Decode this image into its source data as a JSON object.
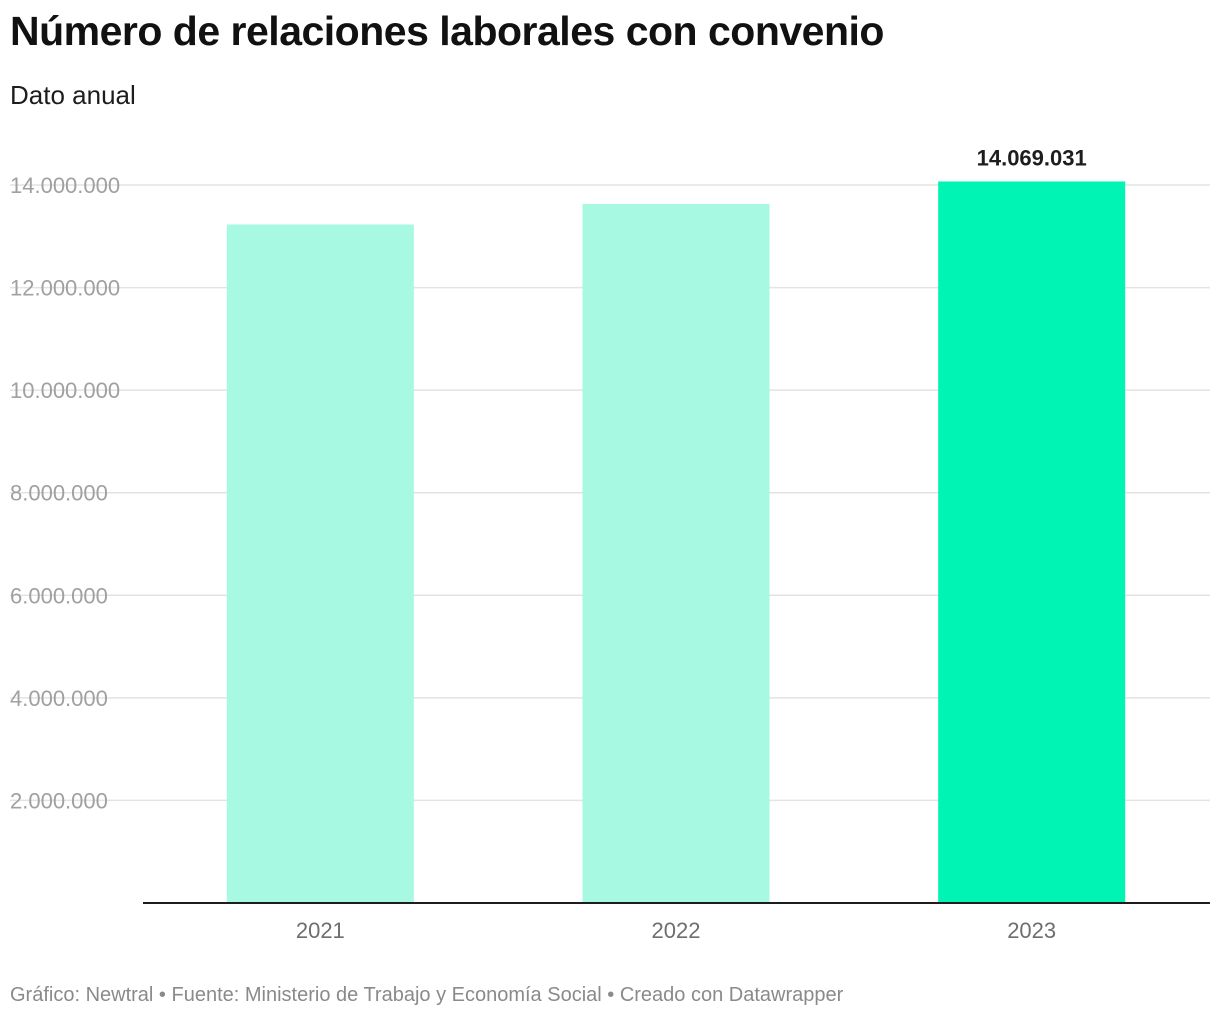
{
  "header": {
    "title": "Número de relaciones laborales con convenio",
    "subtitle": "Dato anual"
  },
  "footer": {
    "text": "Gráfico: Newtral • Fuente: Ministerio de Trabajo y Economía Social • Creado con Datawrapper"
  },
  "colors": {
    "bar_default": "#a7f9e2",
    "bar_highlight": "#00f5b4",
    "gridline": "#e3e3e3",
    "axis": "#1d1d1d",
    "tick_label": "#a0a0a0",
    "category_label": "#6e6e6e",
    "value_label": "#1d1d1d"
  },
  "chart_data": {
    "type": "bar",
    "title": "Número de relaciones laborales con convenio",
    "subtitle": "Dato anual",
    "categories": [
      "2021",
      "2022",
      "2023"
    ],
    "values": [
      13230000,
      13630000,
      14069031
    ],
    "highlight_index": 2,
    "value_labels": [
      "",
      "",
      "14.069.031"
    ],
    "ylim": [
      0,
      14000000
    ],
    "y_ticks": [
      2000000,
      4000000,
      6000000,
      8000000,
      10000000,
      12000000,
      14000000
    ],
    "y_tick_labels": [
      "2.000.000",
      "4.000.000",
      "6.000.000",
      "8.000.000",
      "10.000.000",
      "12.000.000",
      "14.000.000"
    ],
    "grid": true,
    "legend": "none",
    "xlabel": "",
    "ylabel": ""
  }
}
